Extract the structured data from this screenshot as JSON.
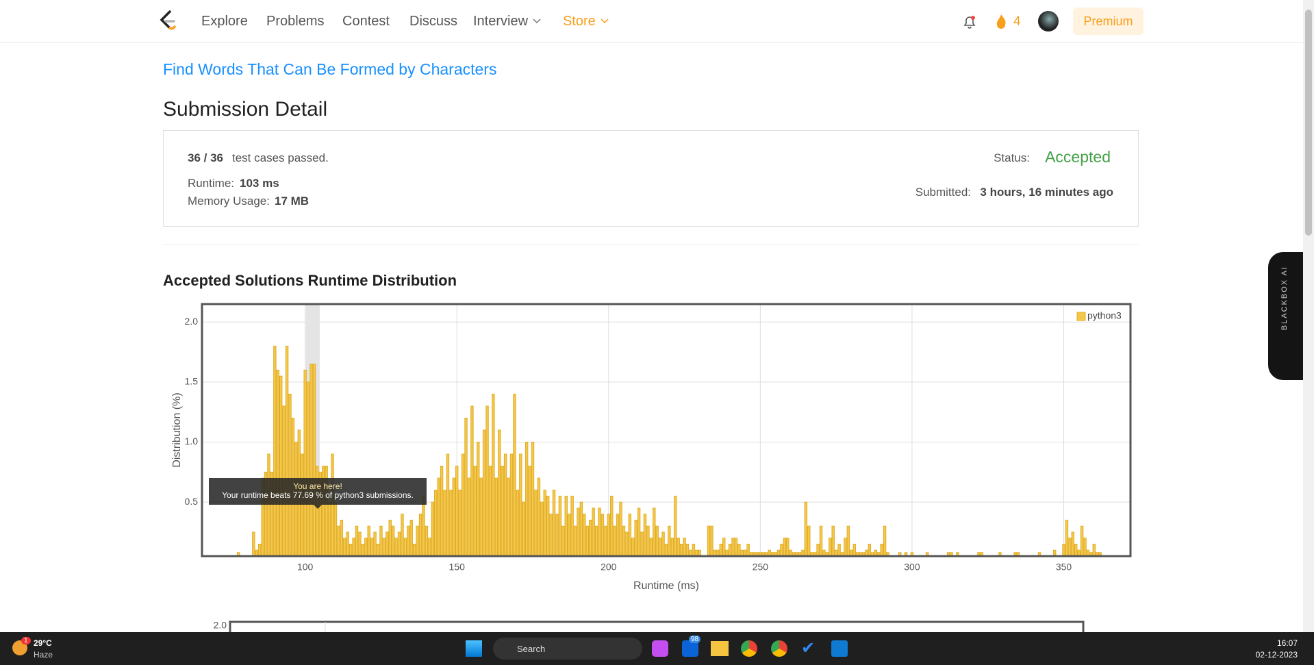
{
  "nav": {
    "items": [
      "Explore",
      "Problems",
      "Contest",
      "Discuss",
      "Interview",
      "Store"
    ],
    "streak": "4",
    "premium": "Premium"
  },
  "problem_title": "Find Words That Can Be Formed by Characters",
  "heading": "Submission Detail",
  "detail": {
    "passed": "36 / 36",
    "passed_text": "test cases passed.",
    "runtime_label": "Runtime:",
    "runtime": "103 ms",
    "memory_label": "Memory Usage:",
    "memory": "17 MB",
    "status_label": "Status:",
    "status": "Accepted",
    "submitted_label": "Submitted:",
    "submitted": "3 hours, 16 minutes ago"
  },
  "sidebar": "BLACKBOX AI",
  "chart_data": {
    "type": "bar",
    "title": "Accepted Solutions Runtime Distribution",
    "x_label": "Runtime (ms)",
    "y_label": "Distribution (%)",
    "x": [
      78,
      83,
      84,
      85,
      86,
      87,
      88,
      89,
      90,
      91,
      92,
      93,
      94,
      95,
      96,
      97,
      98,
      99,
      100,
      101,
      102,
      103,
      104,
      105,
      106,
      107,
      108,
      109,
      110,
      111,
      112,
      113,
      114,
      115,
      116,
      117,
      118,
      119,
      120,
      121,
      122,
      123,
      124,
      125,
      126,
      127,
      128,
      129,
      130,
      131,
      132,
      133,
      134,
      135,
      136,
      137,
      138,
      139,
      140,
      141,
      142,
      143,
      144,
      145,
      146,
      147,
      148,
      149,
      150,
      151,
      152,
      153,
      154,
      155,
      156,
      157,
      158,
      159,
      160,
      161,
      162,
      163,
      164,
      165,
      166,
      167,
      168,
      169,
      170,
      171,
      172,
      173,
      174,
      175,
      176,
      177,
      178,
      179,
      180,
      181,
      182,
      183,
      184,
      185,
      186,
      187,
      188,
      189,
      190,
      191,
      192,
      193,
      194,
      195,
      196,
      197,
      198,
      199,
      200,
      201,
      202,
      203,
      204,
      205,
      206,
      207,
      208,
      209,
      210,
      211,
      212,
      213,
      214,
      215,
      216,
      217,
      218,
      219,
      220,
      221,
      222,
      223,
      224,
      225,
      226,
      227,
      228,
      229,
      230,
      233,
      234,
      235,
      236,
      237,
      238,
      239,
      240,
      241,
      242,
      243,
      244,
      245,
      246,
      247,
      248,
      249,
      250,
      251,
      252,
      253,
      254,
      255,
      256,
      257,
      258,
      259,
      260,
      261,
      262,
      263,
      264,
      265,
      266,
      267,
      268,
      269,
      270,
      271,
      272,
      273,
      274,
      275,
      276,
      277,
      278,
      279,
      280,
      281,
      282,
      283,
      284,
      285,
      286,
      287,
      288,
      289,
      290,
      291,
      292,
      296,
      298,
      300,
      305,
      312,
      313,
      315,
      322,
      323,
      329,
      334,
      335,
      342,
      347,
      350,
      351,
      352,
      353,
      354,
      355,
      356,
      357,
      358,
      359,
      360,
      361,
      362
    ],
    "series": [
      {
        "name": "python3",
        "color": "#f5c84a",
        "values": [
          0.08,
          0.25,
          0.1,
          0.15,
          0.7,
          0.75,
          0.9,
          0.75,
          1.8,
          1.6,
          1.55,
          1.3,
          1.8,
          1.4,
          1.2,
          1.0,
          1.1,
          0.9,
          1.6,
          1.5,
          1.65,
          1.65,
          0.8,
          0.75,
          0.8,
          0.8,
          0.5,
          0.9,
          0.5,
          0.3,
          0.35,
          0.2,
          0.25,
          0.15,
          0.2,
          0.3,
          0.25,
          0.15,
          0.2,
          0.3,
          0.2,
          0.25,
          0.15,
          0.3,
          0.2,
          0.25,
          0.35,
          0.3,
          0.2,
          0.25,
          0.4,
          0.2,
          0.3,
          0.35,
          0.15,
          0.3,
          0.4,
          0.55,
          0.3,
          0.2,
          0.5,
          0.6,
          0.7,
          0.8,
          0.6,
          0.9,
          0.6,
          0.7,
          0.8,
          0.6,
          0.9,
          1.2,
          0.7,
          1.3,
          0.8,
          1.0,
          0.7,
          1.1,
          1.3,
          0.8,
          1.4,
          0.7,
          1.1,
          0.8,
          0.9,
          0.7,
          0.9,
          1.4,
          0.6,
          0.9,
          0.5,
          1.0,
          0.8,
          1.0,
          0.6,
          0.7,
          0.5,
          0.6,
          0.55,
          0.4,
          0.6,
          0.4,
          0.55,
          0.3,
          0.55,
          0.4,
          0.55,
          0.3,
          0.45,
          0.5,
          0.4,
          0.3,
          0.35,
          0.45,
          0.3,
          0.45,
          0.4,
          0.3,
          0.4,
          0.55,
          0.3,
          0.4,
          0.5,
          0.3,
          0.25,
          0.4,
          0.2,
          0.35,
          0.45,
          0.25,
          0.4,
          0.3,
          0.2,
          0.45,
          0.3,
          0.2,
          0.25,
          0.15,
          0.3,
          0.2,
          0.55,
          0.2,
          0.15,
          0.2,
          0.15,
          0.1,
          0.15,
          0.1,
          0.1,
          0.3,
          0.3,
          0.1,
          0.1,
          0.15,
          0.2,
          0.1,
          0.15,
          0.2,
          0.2,
          0.15,
          0.1,
          0.1,
          0.15,
          0.08,
          0.08,
          0.08,
          0.08,
          0.08,
          0.08,
          0.1,
          0.08,
          0.08,
          0.1,
          0.15,
          0.2,
          0.2,
          0.1,
          0.08,
          0.08,
          0.08,
          0.1,
          0.5,
          0.3,
          0.08,
          0.08,
          0.15,
          0.3,
          0.1,
          0.08,
          0.2,
          0.3,
          0.1,
          0.15,
          0.08,
          0.2,
          0.3,
          0.1,
          0.15,
          0.08,
          0.08,
          0.08,
          0.1,
          0.15,
          0.08,
          0.1,
          0.08,
          0.15,
          0.3,
          0.08,
          0.08,
          0.08,
          0.08,
          0.08,
          0.08,
          0.08,
          0.08,
          0.08,
          0.08,
          0.08,
          0.08,
          0.08,
          0.08,
          0.1,
          0.15,
          0.35,
          0.2,
          0.25,
          0.15,
          0.1,
          0.3,
          0.2,
          0.1,
          0.08,
          0.15,
          0.08,
          0.08
        ]
      }
    ],
    "xlim": [
      66,
      372
    ],
    "ylim": [
      0.05,
      2.15
    ],
    "xticks": [
      100,
      150,
      200,
      250,
      300,
      350
    ],
    "yticks": [
      0.5,
      {
        "value": 1,
        "label": "1.0"
      },
      1.5,
      {
        "value": 2,
        "label": "2.0"
      }
    ],
    "grid": true,
    "legend": "top-right",
    "tooltip": [
      "You are here!",
      "Your runtime beats 77.69 % of python3 submissions."
    ]
  },
  "next_chart_tick": "2.0",
  "taskbar": {
    "weather_badge": "1",
    "temp": "29°C",
    "condition": "Haze",
    "search": "Search",
    "mail_badge": "98",
    "time": "16:07",
    "date": "02-12-2023"
  }
}
